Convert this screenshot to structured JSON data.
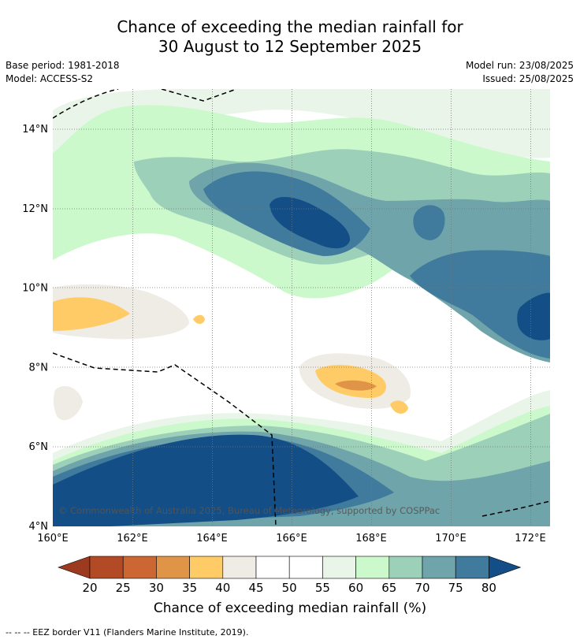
{
  "title": {
    "line1": "Chance of exceeding the median rainfall for",
    "line2": "30 August to 12 September 2025"
  },
  "info": {
    "base_period": "Base period: 1981-2018",
    "model": "Model: ACCESS-S2",
    "model_run": "Model run: 23/08/2025",
    "issued": "Issued: 25/08/2025"
  },
  "map": {
    "copyright": "© Commonwealth of Australia 2025, Bureau of Meteorology, supported by COSPPac",
    "lon_ticks": [
      "160°E",
      "162°E",
      "164°E",
      "166°E",
      "168°E",
      "170°E",
      "172°E"
    ],
    "lat_ticks": [
      "14°N",
      "12°N",
      "10°N",
      "8°N",
      "6°N",
      "4°N"
    ],
    "grid": true
  },
  "colorbar": {
    "title": "Chance of exceeding median rainfall (%)",
    "tick_labels": [
      "20",
      "25",
      "30",
      "35",
      "40",
      "45",
      "50",
      "55",
      "60",
      "65",
      "70",
      "75",
      "80"
    ],
    "colors": {
      "below_20": "#9c3a20",
      "20_25": "#b34a26",
      "25_30": "#cc6633",
      "30_35": "#e09448",
      "35_40": "#fecb66",
      "40_45": "#efece6",
      "45_55": "#ffffff",
      "55_60": "#e9f5e8",
      "60_65": "#cbf9cb",
      "65_70": "#9dd0b9",
      "70_75": "#6ea4aa",
      "75_80": "#407a9c",
      "above_80": "#134e86"
    }
  },
  "footnote": "--  --  -- EEZ border V11 (Flanders Marine Institute, 2019)."
}
